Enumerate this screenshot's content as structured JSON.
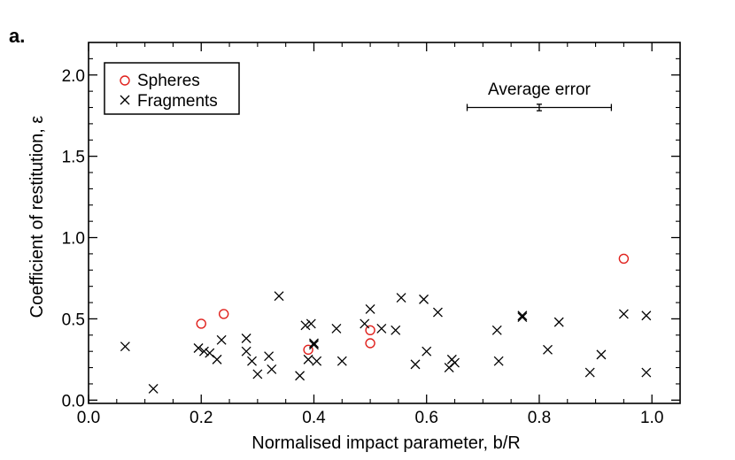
{
  "chart_data": {
    "type": "scatter",
    "panel_label": "a.",
    "xlabel": "Normalised impact parameter, b/R",
    "ylabel": "Coefficient of restitution, ε",
    "xlim": [
      0.0,
      1.05
    ],
    "ylim": [
      -0.02,
      2.2
    ],
    "x_ticks": [
      0.0,
      0.2,
      0.4,
      0.6,
      0.8,
      1.0
    ],
    "x_tick_labels": [
      "0.0",
      "0.2",
      "0.4",
      "0.6",
      "0.8",
      "1.0"
    ],
    "y_ticks": [
      0.0,
      0.5,
      1.0,
      1.5,
      2.0
    ],
    "y_tick_labels": [
      "0.0",
      "0.5",
      "1.0",
      "1.5",
      "2.0"
    ],
    "legend_position": "top-left",
    "series": [
      {
        "name": "Spheres",
        "marker": "circle",
        "color": "#e0201c",
        "points": [
          [
            0.2,
            0.47
          ],
          [
            0.24,
            0.53
          ],
          [
            0.39,
            0.31
          ],
          [
            0.5,
            0.43
          ],
          [
            0.5,
            0.35
          ],
          [
            0.95,
            0.87
          ]
        ]
      },
      {
        "name": "Fragments",
        "marker": "x",
        "color": "#000000",
        "points": [
          [
            0.065,
            0.33
          ],
          [
            0.115,
            0.07
          ],
          [
            0.195,
            0.32
          ],
          [
            0.205,
            0.3
          ],
          [
            0.215,
            0.29
          ],
          [
            0.228,
            0.25
          ],
          [
            0.236,
            0.37
          ],
          [
            0.28,
            0.38
          ],
          [
            0.28,
            0.3
          ],
          [
            0.29,
            0.24
          ],
          [
            0.3,
            0.16
          ],
          [
            0.32,
            0.27
          ],
          [
            0.325,
            0.19
          ],
          [
            0.338,
            0.64
          ],
          [
            0.375,
            0.15
          ],
          [
            0.385,
            0.46
          ],
          [
            0.39,
            0.25
          ],
          [
            0.395,
            0.47
          ],
          [
            0.4,
            0.34
          ],
          [
            0.4,
            0.35
          ],
          [
            0.405,
            0.24
          ],
          [
            0.44,
            0.44
          ],
          [
            0.45,
            0.24
          ],
          [
            0.49,
            0.47
          ],
          [
            0.5,
            0.56
          ],
          [
            0.52,
            0.44
          ],
          [
            0.545,
            0.43
          ],
          [
            0.555,
            0.63
          ],
          [
            0.58,
            0.22
          ],
          [
            0.595,
            0.62
          ],
          [
            0.6,
            0.3
          ],
          [
            0.62,
            0.54
          ],
          [
            0.64,
            0.2
          ],
          [
            0.645,
            0.25
          ],
          [
            0.65,
            0.23
          ],
          [
            0.725,
            0.43
          ],
          [
            0.728,
            0.24
          ],
          [
            0.77,
            0.51
          ],
          [
            0.77,
            0.52
          ],
          [
            0.815,
            0.31
          ],
          [
            0.835,
            0.48
          ],
          [
            0.89,
            0.17
          ],
          [
            0.91,
            0.28
          ],
          [
            0.95,
            0.53
          ],
          [
            0.99,
            0.52
          ],
          [
            0.99,
            0.17
          ]
        ]
      }
    ],
    "annotation": {
      "text": "Average error",
      "center_x": 0.8,
      "center_y": 1.8,
      "x_error": 0.128,
      "y_error": 0.02
    }
  }
}
